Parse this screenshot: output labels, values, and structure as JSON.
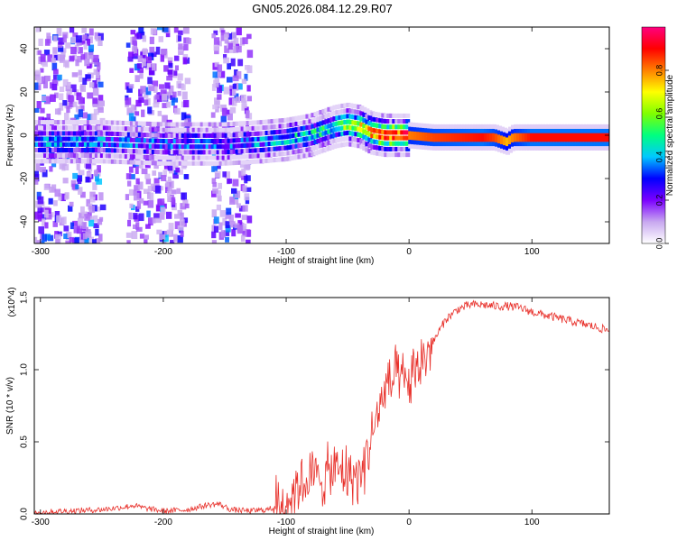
{
  "figure_title": "GN05.2026.084.12.29.R07",
  "chart_data": [
    {
      "type": "heatmap",
      "title": "GN05.2026.084.12.29.R07",
      "xlabel": "Height of straight line (km)",
      "ylabel": "Frequency (Hz)",
      "xlim": [
        -305,
        163
      ],
      "ylim": [
        -50,
        50
      ],
      "xticks": [
        -300,
        -200,
        -100,
        0,
        100
      ],
      "yticks": [
        -40,
        -20,
        0,
        20,
        40
      ],
      "xtick_labels": [
        "-300",
        "-200",
        "-100",
        "0",
        "100"
      ],
      "ytick_labels": [
        "-40",
        "-20",
        "0",
        "20",
        "40"
      ],
      "colorbar": {
        "label": "Normalized spectral amplitude",
        "range": [
          0,
          1
        ],
        "ticks": [
          0.0,
          0.2,
          0.4,
          0.6,
          0.8
        ],
        "tick_labels": [
          "0.0",
          "0.2",
          "0.4",
          "0.6",
          "0.8"
        ],
        "colormap": [
          "#ffffff",
          "#c8a8f0",
          "#7b00ff",
          "#0000ff",
          "#00c8ff",
          "#00ff80",
          "#80ff00",
          "#ffff00",
          "#ff8000",
          "#ff0000",
          "#ff0080"
        ]
      },
      "ridge": {
        "x": [
          -305,
          -250,
          -200,
          -150,
          -120,
          -100,
          -80,
          -60,
          -50,
          -40,
          -30,
          -20,
          -10,
          0,
          20,
          60,
          70,
          80,
          85,
          100,
          163
        ],
        "y": [
          -3,
          -3,
          -4,
          -4,
          -3,
          -2,
          0,
          4,
          5,
          4,
          1,
          0,
          0,
          0,
          -1,
          -1,
          -1,
          -3,
          -1,
          -1,
          -1
        ],
        "amplitude": [
          0.35,
          0.35,
          0.3,
          0.3,
          0.35,
          0.4,
          0.45,
          0.5,
          0.6,
          0.7,
          0.8,
          0.85,
          0.9,
          0.9,
          0.95,
          1.0,
          0.95,
          0.85,
          0.9,
          1.0,
          1.0
        ]
      },
      "noise_bands_x": [
        [
          -305,
          -250
        ],
        [
          -230,
          -180
        ],
        [
          -160,
          -130
        ]
      ]
    },
    {
      "type": "line",
      "xlabel": "Height of straight line (km)",
      "ylabel": "SNR (10 * v/v)",
      "y_multiplier": "(x10^4)",
      "xlim": [
        -305,
        163
      ],
      "ylim": [
        0,
        1.5
      ],
      "xticks": [
        -300,
        -200,
        -100,
        0,
        100
      ],
      "yticks": [
        0.0,
        0.5,
        1.0,
        1.5
      ],
      "xtick_labels": [
        "-300",
        "-200",
        "-100",
        "0",
        "100"
      ],
      "ytick_labels": [
        "0.0",
        "0.5",
        "1.0",
        "1.5"
      ],
      "color": "#e8302a",
      "series": [
        {
          "name": "SNR",
          "x": [
            -305,
            -280,
            -250,
            -230,
            -225,
            -215,
            -200,
            -180,
            -165,
            -155,
            -145,
            -130,
            -115,
            -105,
            -100,
            -95,
            -90,
            -80,
            -70,
            -60,
            -50,
            -40,
            -35,
            -30,
            -25,
            -20,
            -15,
            -10,
            -5,
            0,
            10,
            20,
            30,
            40,
            50,
            60,
            70,
            80,
            90,
            100,
            110,
            120,
            130,
            140,
            150,
            163
          ],
          "y": [
            0.01,
            0.02,
            0.03,
            0.05,
            0.06,
            0.04,
            0.02,
            0.03,
            0.06,
            0.07,
            0.03,
            0.02,
            0.03,
            0.06,
            0.1,
            0.15,
            0.2,
            0.25,
            0.25,
            0.3,
            0.28,
            0.25,
            0.4,
            0.55,
            0.7,
            0.85,
            0.9,
            0.95,
            0.9,
            0.9,
            1.05,
            1.2,
            1.35,
            1.42,
            1.45,
            1.45,
            1.44,
            1.44,
            1.43,
            1.4,
            1.38,
            1.36,
            1.34,
            1.32,
            1.3,
            1.27
          ]
        }
      ]
    }
  ]
}
